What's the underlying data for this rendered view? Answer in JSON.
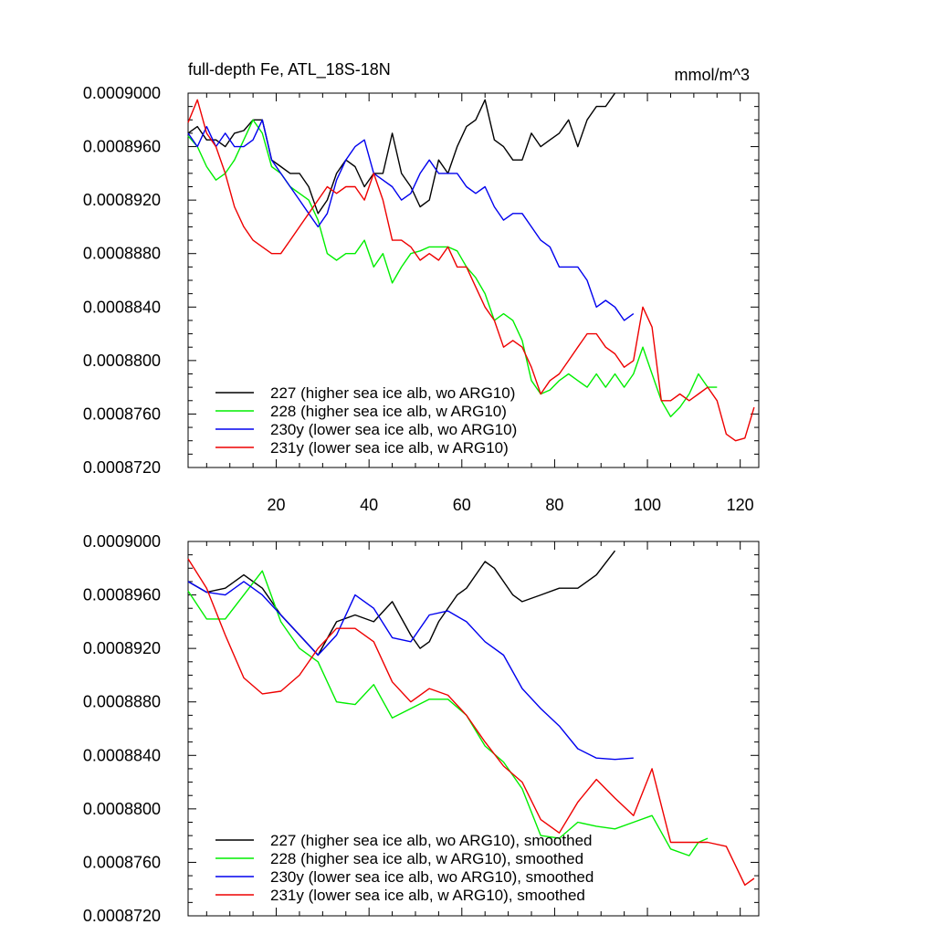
{
  "chart_data": [
    {
      "type": "line",
      "title": "full-depth Fe, ATL_18S-18N",
      "units": "mmol/m^3",
      "xlim": [
        1,
        124
      ],
      "ylim": [
        0.000872,
        0.0009
      ],
      "yticks": [
        "0.0009000",
        "0.0008960",
        "0.0008920",
        "0.0008880",
        "0.0008840",
        "0.0008800",
        "0.0008760",
        "0.0008720"
      ],
      "xticks": [
        "20",
        "40",
        "60",
        "80",
        "100",
        "120"
      ],
      "legend_position": "bottom-left",
      "series": [
        {
          "name": "227 (higher sea ice alb, wo ARG10)",
          "color": "#000000",
          "x": [
            1,
            3,
            5,
            7,
            9,
            11,
            13,
            15,
            17,
            19,
            21,
            23,
            25,
            27,
            29,
            31,
            33,
            35,
            37,
            39,
            41,
            43,
            45,
            47,
            49,
            51,
            53,
            55,
            57,
            59,
            61,
            63,
            65,
            67,
            69,
            71,
            73,
            75,
            77,
            79,
            81,
            83,
            85,
            87,
            89,
            91,
            93
          ],
          "y": [
            0.000897,
            0.0008975,
            0.0008965,
            0.0008965,
            0.000896,
            0.000897,
            0.0008972,
            0.000898,
            0.000898,
            0.000895,
            0.0008945,
            0.000894,
            0.000894,
            0.000893,
            0.000891,
            0.000892,
            0.000894,
            0.000895,
            0.0008945,
            0.000893,
            0.000894,
            0.000894,
            0.000897,
            0.000894,
            0.000893,
            0.0008915,
            0.000892,
            0.000895,
            0.000894,
            0.000896,
            0.0008975,
            0.000898,
            0.0008995,
            0.0008965,
            0.000896,
            0.000895,
            0.000895,
            0.000897,
            0.000896,
            0.0008965,
            0.000897,
            0.000898,
            0.000896,
            0.000898,
            0.000899,
            0.000899,
            0.0009
          ]
        },
        {
          "name": "228 (higher sea ice alb, w ARG10)",
          "color": "#00ee00",
          "x": [
            1,
            3,
            5,
            7,
            9,
            11,
            13,
            15,
            17,
            19,
            21,
            23,
            25,
            27,
            29,
            31,
            33,
            35,
            37,
            39,
            41,
            43,
            45,
            47,
            49,
            51,
            53,
            55,
            57,
            59,
            61,
            63,
            65,
            67,
            69,
            71,
            73,
            75,
            77,
            79,
            81,
            83,
            85,
            87,
            89,
            91,
            93,
            95,
            97,
            99,
            101,
            103,
            105,
            107,
            109,
            111,
            113,
            115
          ],
          "y": [
            0.0008968,
            0.000896,
            0.0008945,
            0.0008935,
            0.000894,
            0.000895,
            0.0008965,
            0.000898,
            0.000897,
            0.0008945,
            0.000894,
            0.000893,
            0.0008925,
            0.000892,
            0.0008905,
            0.000888,
            0.0008875,
            0.000888,
            0.000888,
            0.000889,
            0.000887,
            0.000888,
            0.0008858,
            0.000887,
            0.000888,
            0.0008882,
            0.0008885,
            0.0008885,
            0.0008885,
            0.0008882,
            0.000887,
            0.0008862,
            0.000885,
            0.000883,
            0.0008835,
            0.000883,
            0.0008815,
            0.0008785,
            0.0008775,
            0.0008778,
            0.0008785,
            0.000879,
            0.0008785,
            0.000878,
            0.000879,
            0.000878,
            0.000879,
            0.000878,
            0.000879,
            0.000881,
            0.000879,
            0.000877,
            0.0008758,
            0.0008765,
            0.0008775,
            0.000879,
            0.000878,
            0.000878
          ]
        },
        {
          "name": "230y (lower sea ice alb, wo ARG10)",
          "color": "#0000ee",
          "x": [
            1,
            3,
            5,
            7,
            9,
            11,
            13,
            15,
            17,
            19,
            21,
            23,
            25,
            27,
            29,
            31,
            33,
            35,
            37,
            39,
            41,
            43,
            45,
            47,
            49,
            51,
            53,
            55,
            57,
            59,
            61,
            63,
            65,
            67,
            69,
            71,
            73,
            75,
            77,
            79,
            81,
            83,
            85,
            87,
            89,
            91,
            93,
            95,
            97
          ],
          "y": [
            0.000897,
            0.000896,
            0.0008975,
            0.000896,
            0.000897,
            0.000896,
            0.000896,
            0.0008965,
            0.000898,
            0.000895,
            0.000894,
            0.000893,
            0.000892,
            0.000891,
            0.00089,
            0.000891,
            0.0008935,
            0.000895,
            0.000896,
            0.0008965,
            0.000894,
            0.0008935,
            0.000893,
            0.000892,
            0.0008925,
            0.000894,
            0.000895,
            0.000894,
            0.000894,
            0.000894,
            0.000893,
            0.0008925,
            0.000893,
            0.0008915,
            0.0008905,
            0.000891,
            0.000891,
            0.00089,
            0.000889,
            0.0008885,
            0.000887,
            0.000887,
            0.000887,
            0.000886,
            0.000884,
            0.0008845,
            0.000884,
            0.000883,
            0.0008835
          ]
        },
        {
          "name": "231y (lower sea ice alb, w ARG10)",
          "color": "#ee0000",
          "x": [
            1,
            3,
            5,
            7,
            9,
            11,
            13,
            15,
            17,
            19,
            21,
            23,
            25,
            27,
            29,
            31,
            33,
            35,
            37,
            39,
            41,
            43,
            45,
            47,
            49,
            51,
            53,
            55,
            57,
            59,
            61,
            63,
            65,
            67,
            69,
            71,
            73,
            75,
            77,
            79,
            81,
            83,
            85,
            87,
            89,
            91,
            93,
            95,
            97,
            99,
            101,
            103,
            105,
            107,
            109,
            111,
            113,
            115,
            117,
            119,
            121,
            123
          ],
          "y": [
            0.0008978,
            0.0008995,
            0.000897,
            0.000896,
            0.000894,
            0.0008915,
            0.00089,
            0.000889,
            0.0008885,
            0.000888,
            0.000888,
            0.000889,
            0.00089,
            0.000891,
            0.000892,
            0.000893,
            0.0008925,
            0.000893,
            0.000893,
            0.000892,
            0.000894,
            0.000892,
            0.000889,
            0.000889,
            0.0008885,
            0.0008875,
            0.000888,
            0.0008875,
            0.0008885,
            0.000887,
            0.000887,
            0.0008855,
            0.000884,
            0.000883,
            0.000881,
            0.0008815,
            0.000881,
            0.0008795,
            0.0008775,
            0.0008785,
            0.000879,
            0.00088,
            0.000881,
            0.000882,
            0.000882,
            0.000881,
            0.0008805,
            0.0008795,
            0.00088,
            0.000884,
            0.0008825,
            0.000877,
            0.000877,
            0.0008775,
            0.000877,
            0.0008775,
            0.000878,
            0.000877,
            0.0008745,
            0.000874,
            0.0008742,
            0.0008765
          ]
        }
      ]
    },
    {
      "type": "line",
      "title": "",
      "units": "",
      "xlim": [
        1,
        124
      ],
      "ylim": [
        0.000872,
        0.0009
      ],
      "yticks": [
        "0.0009000",
        "0.0008960",
        "0.0008920",
        "0.0008880",
        "0.0008840",
        "0.0008800",
        "0.0008760",
        "0.0008720"
      ],
      "xticks": [],
      "legend_position": "bottom-left",
      "series": [
        {
          "name": "227 (higher sea ice alb, wo ARG10), smoothed",
          "color": "#000000",
          "x": [
            1,
            5,
            9,
            13,
            17,
            21,
            25,
            29,
            33,
            37,
            41,
            45,
            49,
            51,
            53,
            55,
            59,
            61,
            65,
            67,
            71,
            73,
            77,
            81,
            85,
            89,
            93
          ],
          "y": [
            0.000897,
            0.0008962,
            0.0008965,
            0.0008975,
            0.0008965,
            0.0008945,
            0.000893,
            0.0008915,
            0.000894,
            0.0008945,
            0.000894,
            0.0008955,
            0.000893,
            0.000892,
            0.0008925,
            0.000894,
            0.000896,
            0.0008965,
            0.0008985,
            0.000898,
            0.000896,
            0.0008955,
            0.000896,
            0.0008965,
            0.0008965,
            0.0008975,
            0.0008993
          ]
        },
        {
          "name": "228 (higher sea ice alb, w ARG10), smoothed",
          "color": "#00ee00",
          "x": [
            1,
            5,
            9,
            13,
            17,
            21,
            25,
            29,
            33,
            37,
            41,
            45,
            49,
            53,
            57,
            61,
            65,
            69,
            73,
            77,
            81,
            85,
            89,
            93,
            97,
            101,
            105,
            109,
            111,
            113
          ],
          "y": [
            0.0008963,
            0.0008942,
            0.0008942,
            0.000896,
            0.0008978,
            0.000894,
            0.000892,
            0.000891,
            0.000888,
            0.0008878,
            0.0008893,
            0.0008868,
            0.0008875,
            0.0008882,
            0.0008882,
            0.000887,
            0.0008847,
            0.0008835,
            0.0008815,
            0.000878,
            0.0008778,
            0.000879,
            0.0008787,
            0.0008785,
            0.000879,
            0.0008795,
            0.000877,
            0.0008765,
            0.0008775,
            0.0008778
          ]
        },
        {
          "name": "230y (lower sea ice alb, wo ARG10), smoothed",
          "color": "#0000ee",
          "x": [
            1,
            5,
            9,
            13,
            17,
            21,
            25,
            29,
            33,
            37,
            41,
            45,
            49,
            53,
            57,
            61,
            65,
            69,
            73,
            77,
            81,
            85,
            89,
            93,
            97
          ],
          "y": [
            0.000897,
            0.0008962,
            0.000896,
            0.000897,
            0.000896,
            0.0008945,
            0.000893,
            0.0008915,
            0.000893,
            0.000896,
            0.000895,
            0.0008928,
            0.0008925,
            0.0008945,
            0.0008948,
            0.000894,
            0.0008925,
            0.0008915,
            0.000889,
            0.0008875,
            0.0008862,
            0.0008845,
            0.0008838,
            0.0008837,
            0.0008838
          ]
        },
        {
          "name": "231y (lower sea ice alb, w ARG10), smoothed",
          "color": "#ee0000",
          "x": [
            1,
            5,
            9,
            13,
            17,
            21,
            25,
            29,
            33,
            37,
            41,
            45,
            49,
            53,
            57,
            61,
            65,
            69,
            73,
            77,
            81,
            85,
            89,
            93,
            97,
            101,
            105,
            109,
            113,
            117,
            121,
            123
          ],
          "y": [
            0.0008987,
            0.0008965,
            0.000893,
            0.0008898,
            0.0008886,
            0.0008888,
            0.00089,
            0.000892,
            0.0008935,
            0.0008935,
            0.0008925,
            0.0008895,
            0.000888,
            0.000889,
            0.0008885,
            0.000887,
            0.000885,
            0.0008832,
            0.000882,
            0.0008792,
            0.0008782,
            0.0008805,
            0.0008822,
            0.0008808,
            0.0008795,
            0.000883,
            0.0008775,
            0.0008775,
            0.0008775,
            0.0008772,
            0.0008743,
            0.0008748
          ]
        }
      ]
    }
  ]
}
